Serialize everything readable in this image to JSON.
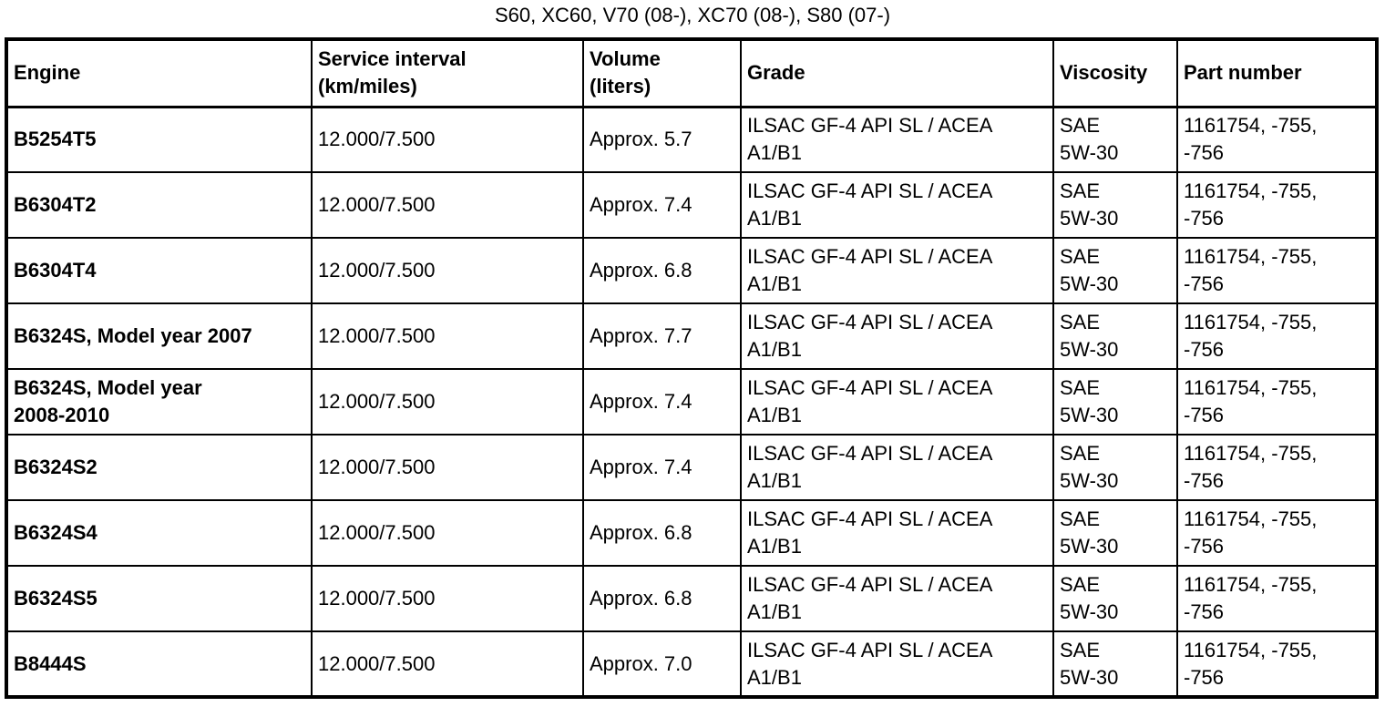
{
  "page_title": "S60, XC60, V70 (08-), XC70 (08-), S80 (07-)",
  "table": {
    "headers": {
      "engine": "Engine",
      "service_interval": "Service interval\n(km/miles)",
      "volume": "Volume\n(liters)",
      "grade": "Grade",
      "viscosity": "Viscosity",
      "part_number": "Part number"
    },
    "rows": [
      {
        "engine": "B5254T5",
        "service_interval": "12.000/7.500",
        "volume": "Approx. 5.7",
        "grade": "ILSAC GF-4 API SL / ACEA\nA1/B1",
        "viscosity": "SAE\n5W-30",
        "part_number": "1161754, -755,\n-756"
      },
      {
        "engine": "B6304T2",
        "service_interval": "12.000/7.500",
        "volume": "Approx. 7.4",
        "grade": "ILSAC GF-4 API SL / ACEA\nA1/B1",
        "viscosity": "SAE\n5W-30",
        "part_number": "1161754, -755,\n-756"
      },
      {
        "engine": "B6304T4",
        "service_interval": "12.000/7.500",
        "volume": "Approx. 6.8",
        "grade": "ILSAC GF-4 API SL / ACEA\nA1/B1",
        "viscosity": "SAE\n5W-30",
        "part_number": "1161754, -755,\n-756"
      },
      {
        "engine": "B6324S, Model year 2007",
        "service_interval": "12.000/7.500",
        "volume": "Approx. 7.7",
        "grade": "ILSAC GF-4 API SL / ACEA\nA1/B1",
        "viscosity": "SAE\n5W-30",
        "part_number": "1161754, -755,\n-756"
      },
      {
        "engine": "B6324S, Model year\n2008-2010",
        "service_interval": "12.000/7.500",
        "volume": "Approx. 7.4",
        "grade": "ILSAC GF-4 API SL / ACEA\nA1/B1",
        "viscosity": "SAE\n5W-30",
        "part_number": "1161754, -755,\n-756"
      },
      {
        "engine": "B6324S2",
        "service_interval": "12.000/7.500",
        "volume": "Approx. 7.4",
        "grade": "ILSAC GF-4 API SL / ACEA\nA1/B1",
        "viscosity": "SAE\n5W-30",
        "part_number": "1161754, -755,\n-756"
      },
      {
        "engine": "B6324S4",
        "service_interval": "12.000/7.500",
        "volume": "Approx. 6.8",
        "grade": "ILSAC GF-4 API SL / ACEA\nA1/B1",
        "viscosity": "SAE\n5W-30",
        "part_number": "1161754, -755,\n-756"
      },
      {
        "engine": "B6324S5",
        "service_interval": "12.000/7.500",
        "volume": "Approx. 6.8",
        "grade": "ILSAC GF-4 API SL / ACEA\nA1/B1",
        "viscosity": "SAE\n5W-30",
        "part_number": "1161754, -755,\n-756"
      },
      {
        "engine": "B8444S",
        "service_interval": "12.000/7.500",
        "volume": "Approx. 7.0",
        "grade": "ILSAC GF-4 API SL / ACEA\nA1/B1",
        "viscosity": "SAE\n5W-30",
        "part_number": "1161754, -755,\n-756"
      }
    ]
  }
}
